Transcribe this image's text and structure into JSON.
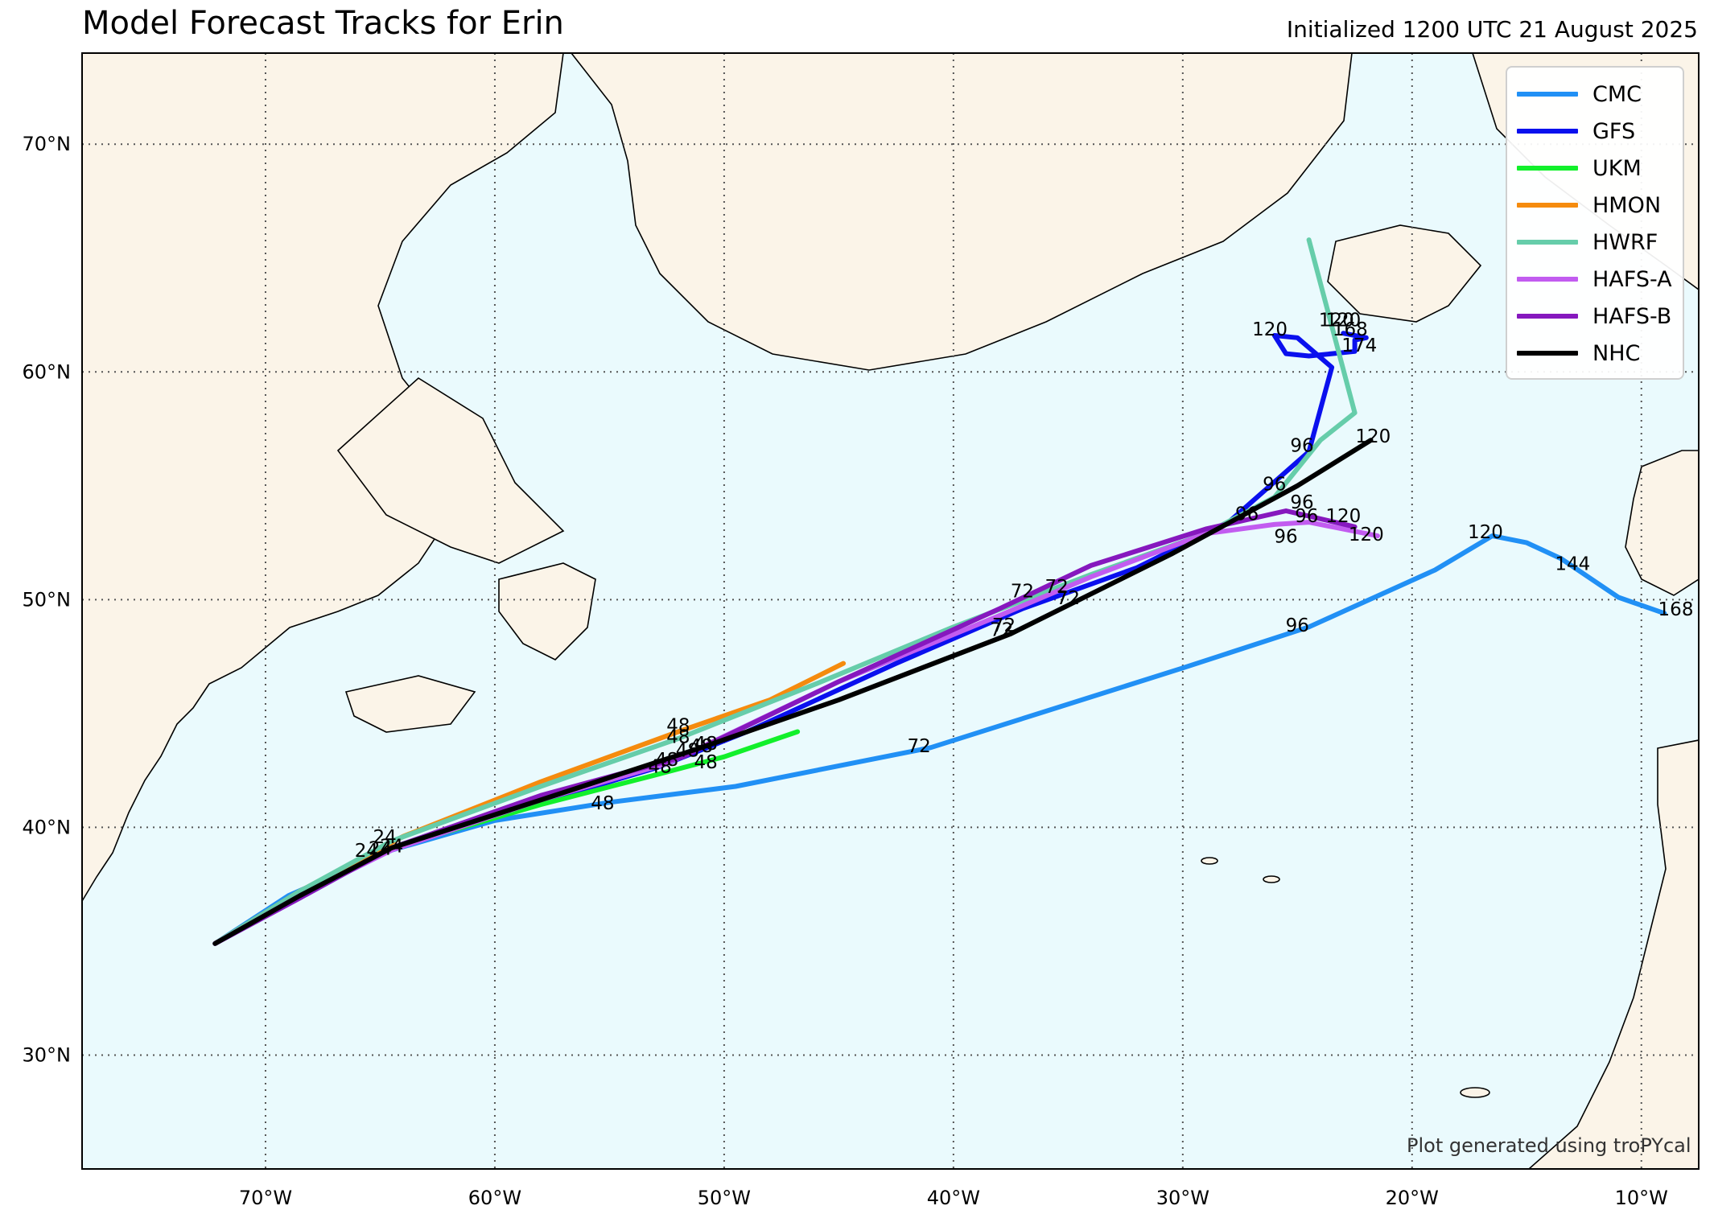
{
  "title": "Model Forecast Tracks for Erin",
  "init_label": "Initialized 1200 UTC 21 August 2025",
  "credit": "Plot generated using troPYcal",
  "colors": {
    "ocean": "#eafafd",
    "land": "#fbf4e8",
    "coast": "#000000",
    "grid": "#555555"
  },
  "map": {
    "lon_range": [
      -78,
      -7.5
    ],
    "lat_range": [
      25,
      74
    ],
    "lon_ticks": [
      {
        "value": -70,
        "label": "70°W"
      },
      {
        "value": -60,
        "label": "60°W"
      },
      {
        "value": -50,
        "label": "50°W"
      },
      {
        "value": -40,
        "label": "40°W"
      },
      {
        "value": -30,
        "label": "30°W"
      },
      {
        "value": -20,
        "label": "20°W"
      },
      {
        "value": -10,
        "label": "10°W"
      }
    ],
    "lat_ticks": [
      {
        "value": 30,
        "label": "30°N"
      },
      {
        "value": 40,
        "label": "40°N"
      },
      {
        "value": 50,
        "label": "50°N"
      },
      {
        "value": 60,
        "label": "60°N"
      },
      {
        "value": 70,
        "label": "70°N"
      }
    ],
    "grid": "dotted"
  },
  "chart_data": {
    "type": "line",
    "x_axis": "longitude",
    "y_axis": "latitude",
    "legend_position": "top-right",
    "series": [
      {
        "name": "CMC",
        "color": "#2190f5",
        "points": [
          [
            -72.2,
            34.9
          ],
          [
            -69,
            37
          ],
          [
            -64.5,
            39
          ],
          [
            -60,
            40.3
          ],
          [
            -55,
            41.1
          ],
          [
            -49.5,
            41.8
          ],
          [
            -41,
            43.5
          ],
          [
            -30,
            47
          ],
          [
            -24.5,
            48.8
          ],
          [
            -19,
            51.3
          ],
          [
            -16.5,
            52.8
          ],
          [
            -15,
            52.5
          ],
          [
            -13.5,
            51.8
          ],
          [
            -11,
            50.1
          ],
          [
            -9,
            49.4
          ]
        ],
        "labels": [
          {
            "text": "48",
            "lon": -55.3,
            "lat": 40.8
          },
          {
            "text": "72",
            "lon": -41.5,
            "lat": 43.3
          },
          {
            "text": "96",
            "lon": -25,
            "lat": 48.6
          },
          {
            "text": "120",
            "lon": -16.8,
            "lat": 52.7
          },
          {
            "text": "144",
            "lon": -13,
            "lat": 51.3
          },
          {
            "text": "168",
            "lon": -8.5,
            "lat": 49.3
          }
        ]
      },
      {
        "name": "GFS",
        "color": "#0a10ee",
        "points": [
          [
            -72.2,
            34.9
          ],
          [
            -68.5,
            37.1
          ],
          [
            -64.5,
            39.1
          ],
          [
            -58,
            41.1
          ],
          [
            -53,
            42.6
          ],
          [
            -49,
            44.2
          ],
          [
            -42.5,
            47.2
          ],
          [
            -37,
            49.6
          ],
          [
            -32,
            51.4
          ],
          [
            -28,
            53.4
          ],
          [
            -24.5,
            56.5
          ],
          [
            -23.5,
            60.2
          ],
          [
            -25,
            61.5
          ],
          [
            -26,
            61.6
          ],
          [
            -25.5,
            60.8
          ],
          [
            -24.5,
            60.7
          ],
          [
            -22.5,
            60.9
          ],
          [
            -22.5,
            61.4
          ],
          [
            -22,
            61.5
          ],
          [
            -23,
            61.7
          ]
        ],
        "labels": [
          {
            "text": "48",
            "lon": -50.8,
            "lat": 43.4
          },
          {
            "text": "72",
            "lon": -37.8,
            "lat": 48.6
          },
          {
            "text": "96",
            "lon": -25.5,
            "lat": 52.5
          },
          {
            "text": "96",
            "lon": -24.8,
            "lat": 56.5
          },
          {
            "text": "120",
            "lon": -26.2,
            "lat": 61.6
          },
          {
            "text": "120",
            "lon": -23.3,
            "lat": 62
          },
          {
            "text": "168",
            "lon": -22.7,
            "lat": 61.6
          },
          {
            "text": "174",
            "lon": -22.3,
            "lat": 60.9
          }
        ]
      },
      {
        "name": "UKM",
        "color": "#12f02b",
        "points": [
          [
            -72.2,
            34.9
          ],
          [
            -68.5,
            37.1
          ],
          [
            -64.5,
            39.1
          ],
          [
            -58,
            41
          ],
          [
            -53,
            42.3
          ],
          [
            -50,
            43.1
          ],
          [
            -46.8,
            44.2
          ]
        ],
        "labels": [
          {
            "text": "48",
            "lon": -50.8,
            "lat": 42.6
          }
        ]
      },
      {
        "name": "HMON",
        "color": "#f58b0e",
        "points": [
          [
            -72.2,
            34.9
          ],
          [
            -68.5,
            37.2
          ],
          [
            -64,
            39.6
          ],
          [
            -58,
            42
          ],
          [
            -52,
            44.2
          ],
          [
            -48,
            45.6
          ],
          [
            -44.8,
            47.2
          ]
        ],
        "labels": [
          {
            "text": "48",
            "lon": -52,
            "lat": 44.2
          }
        ]
      },
      {
        "name": "HWRF",
        "color": "#66cdaa",
        "points": [
          [
            -72.2,
            34.9
          ],
          [
            -68.5,
            37.2
          ],
          [
            -64.5,
            39.4
          ],
          [
            -58,
            41.8
          ],
          [
            -52,
            43.9
          ],
          [
            -46,
            46.3
          ],
          [
            -40,
            48.8
          ],
          [
            -34,
            51.1
          ],
          [
            -29,
            52.9
          ],
          [
            -26,
            54.5
          ],
          [
            -24,
            57
          ],
          [
            -22.5,
            58.2
          ],
          [
            -24.5,
            65.8
          ]
        ],
        "labels": [
          {
            "text": "48",
            "lon": -52,
            "lat": 43.7
          },
          {
            "text": "72",
            "lon": -35.5,
            "lat": 50.3
          },
          {
            "text": "96",
            "lon": -26,
            "lat": 54.8
          },
          {
            "text": "120",
            "lon": -23,
            "lat": 62
          }
        ]
      },
      {
        "name": "HAFS-A",
        "color": "#c25cf0",
        "points": [
          [
            -72.2,
            34.9
          ],
          [
            -68.5,
            37
          ],
          [
            -64.5,
            39
          ],
          [
            -58,
            41.2
          ],
          [
            -52.5,
            42.8
          ],
          [
            -45,
            46.4
          ],
          [
            -38,
            49.3
          ],
          [
            -34,
            51
          ],
          [
            -29,
            52.9
          ],
          [
            -26,
            53.3
          ],
          [
            -24.5,
            53.4
          ],
          [
            -21.5,
            52.8
          ]
        ],
        "labels": [
          {
            "text": "48",
            "lon": -52.8,
            "lat": 42.4
          },
          {
            "text": "72",
            "lon": -35,
            "lat": 49.8
          },
          {
            "text": "96",
            "lon": -24.6,
            "lat": 53.4
          },
          {
            "text": "120",
            "lon": -22,
            "lat": 52.6
          }
        ]
      },
      {
        "name": "HAFS-B",
        "color": "#8618be",
        "points": [
          [
            -72.2,
            34.9
          ],
          [
            -68.5,
            36.9
          ],
          [
            -64.5,
            39.1
          ],
          [
            -58,
            41.4
          ],
          [
            -51.8,
            43.1
          ],
          [
            -45,
            46.4
          ],
          [
            -38,
            49.6
          ],
          [
            -34,
            51.5
          ],
          [
            -29,
            53.1
          ],
          [
            -25.5,
            53.9
          ],
          [
            -22.5,
            53.2
          ]
        ],
        "labels": [
          {
            "text": "48",
            "lon": -52.5,
            "lat": 42.7
          },
          {
            "text": "72",
            "lon": -37,
            "lat": 50.1
          },
          {
            "text": "96",
            "lon": -24.8,
            "lat": 54
          },
          {
            "text": "120",
            "lon": -23,
            "lat": 53.4
          }
        ]
      },
      {
        "name": "NHC",
        "color": "#000000",
        "points": [
          [
            -72.2,
            34.9
          ],
          [
            -68.5,
            37
          ],
          [
            -64.5,
            39.1
          ],
          [
            -58,
            41.2
          ],
          [
            -51,
            43.5
          ],
          [
            -45,
            45.6
          ],
          [
            -37.5,
            48.5
          ],
          [
            -30.5,
            52
          ],
          [
            -25,
            55
          ],
          [
            -21.8,
            57
          ]
        ],
        "labels": [
          {
            "text": "24",
            "lon": -65,
            "lat": 38.8
          },
          {
            "text": "48",
            "lon": -51,
            "lat": 43.3
          },
          {
            "text": "72",
            "lon": -37.9,
            "lat": 48.4
          },
          {
            "text": "96",
            "lon": -27.2,
            "lat": 53.5
          },
          {
            "text": "120",
            "lon": -21.7,
            "lat": 56.9
          }
        ]
      }
    ],
    "extra_labels": [
      {
        "text": "24",
        "lon": -64.8,
        "lat": 39.3
      },
      {
        "text": "24",
        "lon": -65.6,
        "lat": 38.7
      },
      {
        "text": "24",
        "lon": -64.5,
        "lat": 38.9
      },
      {
        "text": "48",
        "lon": -51.6,
        "lat": 43.1
      }
    ]
  }
}
